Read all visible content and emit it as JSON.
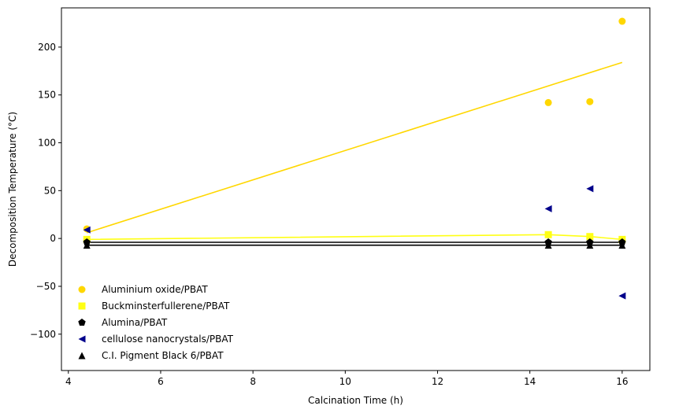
{
  "chart_data": {
    "type": "scatter",
    "title": "",
    "xlabel": "Calcination Time (h)",
    "ylabel": "Decomposition Temperature (°C)",
    "xlim": [
      3.85,
      16.6
    ],
    "ylim": [
      -138,
      241
    ],
    "xticks": [
      4,
      6,
      8,
      10,
      12,
      14,
      16
    ],
    "yticks": [
      -100,
      -50,
      0,
      50,
      100,
      150,
      200
    ],
    "xtick_labels": [
      "4",
      "6",
      "8",
      "10",
      "12",
      "14",
      "16"
    ],
    "ytick_labels": [
      "−100",
      "−50",
      "0",
      "50",
      "100",
      "150",
      "200"
    ],
    "grid": false,
    "legend_position": "lower-left",
    "series": [
      {
        "name": "Aluminium oxide/PBAT",
        "marker": "circle",
        "color": "#FFD700",
        "x": [
          4.4,
          14.4,
          15.3,
          16.0
        ],
        "y": [
          10,
          142,
          143,
          227
        ],
        "fit_line": {
          "x": [
            4.4,
            16.0
          ],
          "y": [
            6,
            184
          ]
        }
      },
      {
        "name": "Buckminsterfullerene/PBAT",
        "marker": "square",
        "color": "#FFFF14",
        "x": [
          4.4,
          14.4,
          15.3,
          16.0
        ],
        "y": [
          -1,
          4,
          2,
          -1
        ],
        "fit_line": {
          "x": [
            4.4,
            14.4,
            15.3,
            16.0
          ],
          "y": [
            -1,
            4,
            2,
            -1
          ]
        }
      },
      {
        "name": "Alumina/PBAT",
        "marker": "pentagon",
        "color": "#000000",
        "x": [
          4.4,
          14.4,
          15.3,
          16.0
        ],
        "y": [
          -4,
          -4,
          -4,
          -4
        ],
        "fit_line": {
          "x": [
            4.4,
            16.0
          ],
          "y": [
            -4,
            -4
          ]
        }
      },
      {
        "name": "cellulose nanocrystals/PBAT",
        "marker": "triangle-left",
        "color": "#00008B",
        "x": [
          4.4,
          14.4,
          15.3,
          16.0
        ],
        "y": [
          9,
          31,
          52,
          -60
        ]
      },
      {
        "name": "C.I. Pigment Black 6/PBAT",
        "marker": "triangle-up",
        "color": "#000000",
        "x": [
          4.4,
          14.4,
          15.3,
          16.0
        ],
        "y": [
          -7,
          -7,
          -7,
          -7
        ],
        "fit_line": {
          "x": [
            4.4,
            16.0
          ],
          "y": [
            -7,
            -7
          ]
        }
      }
    ]
  }
}
